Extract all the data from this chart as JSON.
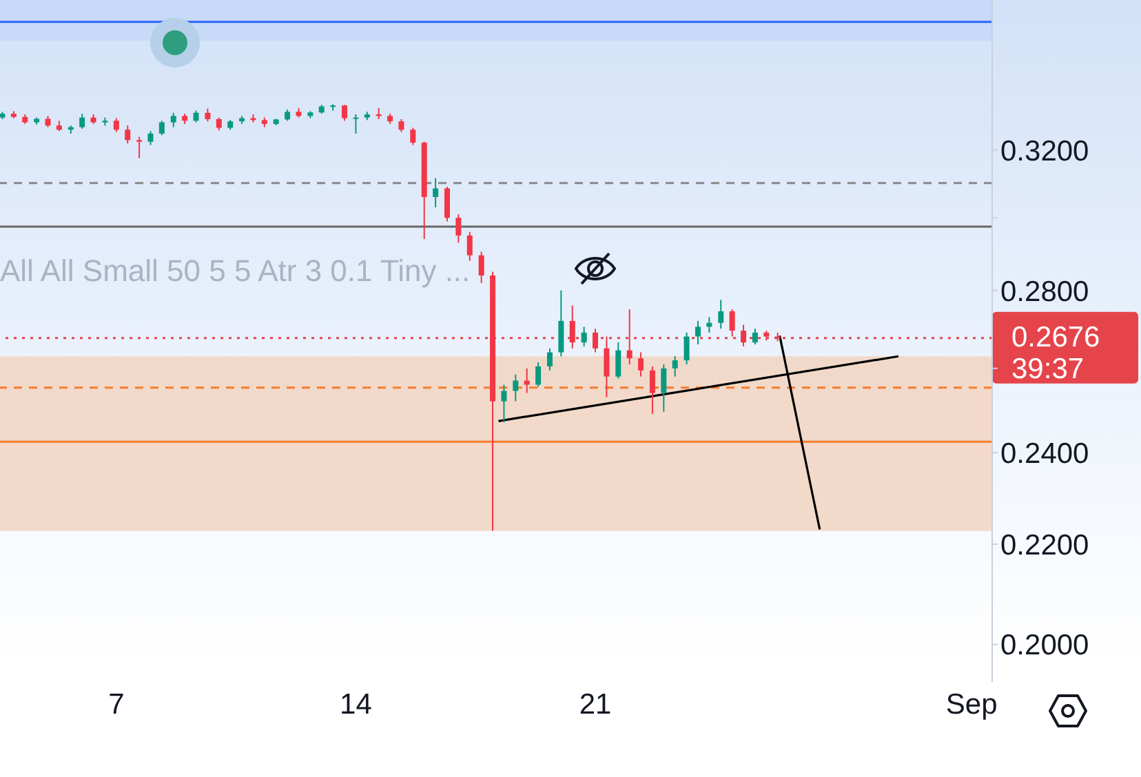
{
  "chart_data": {
    "type": "candlestick",
    "log": "y",
    "x": [
      3.67,
      4.0,
      4.33,
      4.67,
      5.0,
      5.33,
      5.67,
      6.0,
      6.33,
      6.67,
      7.0,
      7.33,
      7.67,
      8.0,
      8.33,
      8.67,
      9.0,
      9.33,
      9.67,
      10.0,
      10.33,
      10.67,
      11.0,
      11.33,
      11.67,
      12.0,
      12.33,
      12.67,
      13.0,
      13.33,
      13.67,
      14.0,
      14.33,
      14.67,
      15.0,
      15.33,
      15.67,
      16.0,
      16.33,
      16.67,
      17.0,
      17.33,
      17.67,
      18.0,
      18.33,
      18.67,
      19.0,
      19.33,
      19.67,
      20.0,
      20.33,
      20.67,
      21.0,
      21.33,
      21.67,
      22.0,
      22.33,
      22.67,
      23.0,
      23.33,
      23.67,
      24.0,
      24.33,
      24.67,
      25.0,
      25.33,
      25.67,
      26.0,
      26.33
    ],
    "ohlc": [
      [
        0.33,
        0.3318,
        0.3295,
        0.3312
      ],
      [
        0.3312,
        0.332,
        0.3298,
        0.3302
      ],
      [
        0.3302,
        0.331,
        0.328,
        0.3285
      ],
      [
        0.3285,
        0.33,
        0.3278,
        0.3296
      ],
      [
        0.3296,
        0.3305,
        0.327,
        0.3275
      ],
      [
        0.3275,
        0.329,
        0.3258,
        0.3262
      ],
      [
        0.3262,
        0.3275,
        0.325,
        0.327
      ],
      [
        0.327,
        0.3312,
        0.3265,
        0.33
      ],
      [
        0.33,
        0.331,
        0.328,
        0.3285
      ],
      [
        0.3285,
        0.33,
        0.3275,
        0.329
      ],
      [
        0.329,
        0.3298,
        0.3255,
        0.3262
      ],
      [
        0.3262,
        0.3275,
        0.322,
        0.323
      ],
      [
        0.323,
        0.324,
        0.3175,
        0.3225
      ],
      [
        0.3225,
        0.3258,
        0.3215,
        0.325
      ],
      [
        0.325,
        0.329,
        0.3245,
        0.3285
      ],
      [
        0.3285,
        0.3315,
        0.327,
        0.3305
      ],
      [
        0.3305,
        0.3312,
        0.328,
        0.329
      ],
      [
        0.329,
        0.3322,
        0.3285,
        0.3315
      ],
      [
        0.3315,
        0.3328,
        0.3288,
        0.3295
      ],
      [
        0.3295,
        0.33,
        0.326,
        0.3268
      ],
      [
        0.3268,
        0.3292,
        0.3262,
        0.3288
      ],
      [
        0.3288,
        0.3305,
        0.328,
        0.3298
      ],
      [
        0.3298,
        0.331,
        0.3285,
        0.3292
      ],
      [
        0.3292,
        0.33,
        0.327,
        0.328
      ],
      [
        0.328,
        0.3296,
        0.3276,
        0.3294
      ],
      [
        0.3294,
        0.3325,
        0.329,
        0.3318
      ],
      [
        0.3318,
        0.333,
        0.33,
        0.3305
      ],
      [
        0.3305,
        0.332,
        0.3298,
        0.3316
      ],
      [
        0.3316,
        0.334,
        0.3312,
        0.3335
      ],
      [
        0.3335,
        0.3342,
        0.3322,
        0.3338
      ],
      [
        0.3338,
        0.334,
        0.329,
        0.3298
      ],
      [
        0.3298,
        0.331,
        0.325,
        0.33
      ],
      [
        0.33,
        0.3318,
        0.3292,
        0.331
      ],
      [
        0.331,
        0.333,
        0.3295,
        0.3305
      ],
      [
        0.3305,
        0.3312,
        0.328,
        0.3288
      ],
      [
        0.3288,
        0.3295,
        0.3255,
        0.3262
      ],
      [
        0.3262,
        0.3268,
        0.3215,
        0.3222
      ],
      [
        0.3222,
        0.3225,
        0.294,
        0.306
      ],
      [
        0.306,
        0.3115,
        0.303,
        0.3085
      ],
      [
        0.3085,
        0.309,
        0.299,
        0.3
      ],
      [
        0.3,
        0.301,
        0.293,
        0.295
      ],
      [
        0.295,
        0.296,
        0.288,
        0.2895
      ],
      [
        0.2895,
        0.2905,
        0.282,
        0.284
      ],
      [
        0.284,
        0.285,
        0.2228,
        0.252
      ],
      [
        0.252,
        0.256,
        0.247,
        0.2545
      ],
      [
        0.2545,
        0.2585,
        0.252,
        0.257
      ],
      [
        0.257,
        0.26,
        0.254,
        0.256
      ],
      [
        0.256,
        0.2615,
        0.2555,
        0.2605
      ],
      [
        0.2605,
        0.265,
        0.2595,
        0.264
      ],
      [
        0.264,
        0.28,
        0.263,
        0.272
      ],
      [
        0.272,
        0.276,
        0.265,
        0.2665
      ],
      [
        0.2665,
        0.2705,
        0.2655,
        0.269
      ],
      [
        0.269,
        0.27,
        0.264,
        0.265
      ],
      [
        0.265,
        0.268,
        0.253,
        0.258
      ],
      [
        0.258,
        0.2665,
        0.2575,
        0.2645
      ],
      [
        0.2645,
        0.275,
        0.261,
        0.2625
      ],
      [
        0.2625,
        0.264,
        0.258,
        0.2595
      ],
      [
        0.2595,
        0.2605,
        0.249,
        0.254
      ],
      [
        0.254,
        0.261,
        0.2495,
        0.26
      ],
      [
        0.26,
        0.263,
        0.258,
        0.262
      ],
      [
        0.262,
        0.269,
        0.261,
        0.268
      ],
      [
        0.268,
        0.272,
        0.266,
        0.2705
      ],
      [
        0.2705,
        0.273,
        0.269,
        0.2715
      ],
      [
        0.2715,
        0.2775,
        0.27,
        0.2745
      ],
      [
        0.2745,
        0.275,
        0.268,
        0.2695
      ],
      [
        0.2695,
        0.271,
        0.2655,
        0.2665
      ],
      [
        0.2665,
        0.27,
        0.266,
        0.269
      ],
      [
        0.269,
        0.2695,
        0.267,
        0.268
      ],
      [
        0.268,
        0.269,
        0.2668,
        0.2676
      ]
    ],
    "colors": [
      "#089981",
      "#f23645",
      "#f23645",
      "#089981",
      "#f23645",
      "#f23645",
      "#089981",
      "#089981",
      "#f23645",
      "#089981",
      "#f23645",
      "#f23645",
      "#f23645",
      "#089981",
      "#089981",
      "#089981",
      "#f23645",
      "#089981",
      "#f23645",
      "#f23645",
      "#089981",
      "#089981",
      "#f23645",
      "#f23645",
      "#089981",
      "#089981",
      "#f23645",
      "#089981",
      "#089981",
      "#089981",
      "#f23645",
      "#089981",
      "#089981",
      "#f23645",
      "#f23645",
      "#f23645",
      "#f23645",
      "#f23645",
      "#089981",
      "#f23645",
      "#f23645",
      "#f23645",
      "#f23645",
      "#f23645",
      "#089981",
      "#089981",
      "#f23645",
      "#089981",
      "#089981",
      "#089981",
      "#f23645",
      "#089981",
      "#f23645",
      "#f23645",
      "#089981",
      "#f23645",
      "#f23645",
      "#f23645",
      "#089981",
      "#089981",
      "#089981",
      "#089981",
      "#089981",
      "#089981",
      "#f23645",
      "#f23645",
      "#089981",
      "#f23645",
      "#f23645"
    ],
    "series": [
      {
        "type": "line",
        "x": [
          18.17,
          29.86
        ],
        "values": [
          0.2473,
          0.263
        ],
        "color": "#000000"
      },
      {
        "type": "line",
        "x": [
          26.39,
          27.56
        ],
        "values": [
          0.2682,
          0.2231
        ],
        "color": "#000000"
      }
    ],
    "xlim": [
      3.6,
      32.6
    ],
    "xticks": [
      7,
      14,
      21,
      {
        "value": 32,
        "label": "Sep"
      }
    ],
    "ylim": [
      0.193,
      0.369
    ],
    "yticks": [
      {
        "value": 0.2,
        "label": "0.2000"
      },
      {
        "value": 0.22,
        "label": "0.2200"
      },
      {
        "value": 0.24,
        "label": "0.2400"
      },
      {
        "value": 0.26,
        "label": null
      },
      {
        "value": 0.28,
        "label": "0.2800"
      },
      {
        "value": 0.3,
        "label": null
      },
      {
        "value": 0.32,
        "label": "0.3200"
      }
    ],
    "bands": [
      {
        "axis": "y",
        "from": 0.2228,
        "to": 0.263,
        "color": "#f2d6c4"
      },
      {
        "axis": "y",
        "from": 0.355,
        "to": 0.369,
        "color": "#c5d8f6"
      }
    ],
    "ref_lines": [
      {
        "axis": "y",
        "value": 0.3614,
        "color": "#2962ff",
        "line_style": "solid"
      },
      {
        "axis": "y",
        "value": 0.3101,
        "color": "#888888",
        "line_style": "dashed"
      },
      {
        "axis": "y",
        "value": 0.2975,
        "color": "#666666",
        "line_style": "solid"
      },
      {
        "axis": "y",
        "value": 0.2553,
        "color": "#f57c2f",
        "line_style": "dashed"
      },
      {
        "axis": "y",
        "value": 0.2425,
        "color": "#f57c2f",
        "line_style": "solid"
      },
      {
        "axis": "y",
        "value": 0.2676,
        "label": "0.2676",
        "color": "#e5444b",
        "line_style": "dotted"
      }
    ],
    "annotations": [
      "All All Small 50 5 5 Atr 3 0.1 Tiny ...",
      "39:37"
    ]
  }
}
